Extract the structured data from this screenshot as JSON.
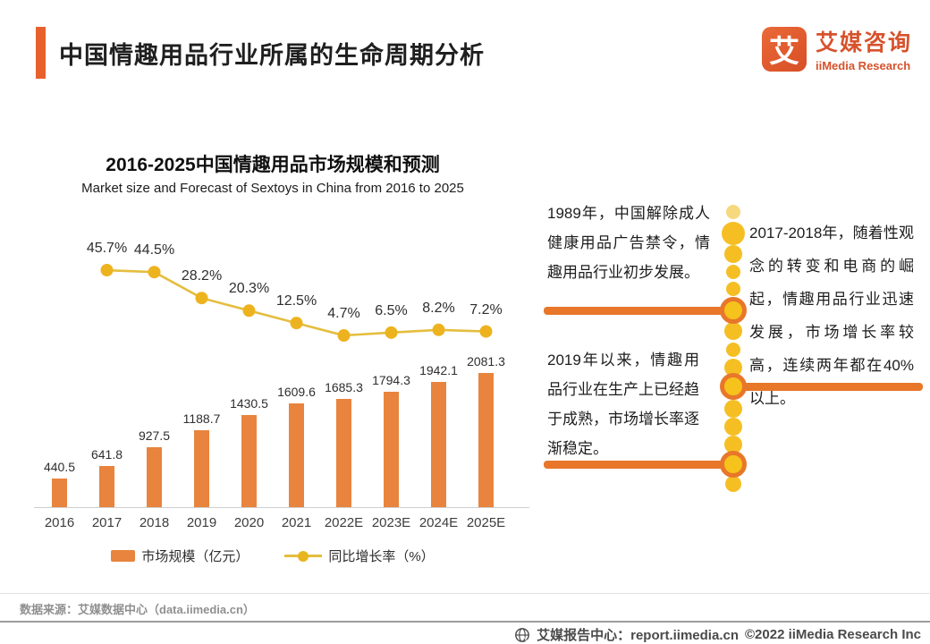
{
  "header": {
    "title": "中国情趣用品行业所属的生命周期分析",
    "logo": {
      "icon_char": "艾",
      "name_cn": "艾媒咨询",
      "name_en": "iiMedia Research"
    }
  },
  "chart": {
    "title_cn": "2016-2025中国情趣用品市场规模和预测",
    "title_en": "Market size and Forecast of Sextoys in China from 2016 to 2025",
    "legend": [
      {
        "label": "市场规模（亿元）",
        "type": "bar",
        "color": "#E8843D"
      },
      {
        "label": "同比增长率（%）",
        "type": "line",
        "color": "#E4BE3E"
      }
    ]
  },
  "chart_data": {
    "type": "combo",
    "title": "2016-2025中国情趣用品市场规模和预测",
    "subtitle": "Market size and Forecast of Sextoys in China from 2016 to 2025",
    "categories": [
      "2016",
      "2017",
      "2018",
      "2019",
      "2020",
      "2021",
      "2022E",
      "2023E",
      "2024E",
      "2025E"
    ],
    "series": [
      {
        "name": "市场规模（亿元）",
        "type": "bar",
        "color": "#E8843D",
        "values": [
          440.5,
          641.8,
          927.5,
          1188.7,
          1430.5,
          1609.6,
          1685.3,
          1794.3,
          1942.1,
          2081.3
        ]
      },
      {
        "name": "同比增长率（%）",
        "type": "line",
        "color": "#E4BE3E",
        "unit": "%",
        "start_category": "2017",
        "values": [
          45.7,
          44.5,
          28.2,
          20.3,
          12.5,
          4.7,
          6.5,
          8.2,
          7.2
        ]
      }
    ],
    "value_labels": true,
    "legend_position": "bottom",
    "y_axis_visible": false,
    "grid": false
  },
  "timeline": {
    "events": [
      {
        "period": "1989年",
        "side": "left",
        "text": "1989年，中国解除成人健康用品广告禁令，情趣用品行业初步发展。"
      },
      {
        "period": "2017-2018年",
        "side": "right",
        "text": "2017-2018年，随着性观念的转变和电商的崛起，情趣用品行业迅速发展，市场增长率较高，连续两年都在40%以上。"
      },
      {
        "period": "2019年以来",
        "side": "left",
        "text": "2019年以来，情趣用品行业在生产上已经趋于成熟，市场增长率逐渐稳定。"
      }
    ]
  },
  "footer": {
    "source": "数据来源：艾媒数据中心（data.iimedia.cn）",
    "report_center": "艾媒报告中心：report.iimedia.cn",
    "copyright": "©2022  iiMedia Research Inc"
  },
  "colors": {
    "accent_orange_red": "#E8612C",
    "bar_orange": "#E8843D",
    "line_yellow": "#E4BE3E",
    "dot_yellow": "#F5BF24",
    "milestone_ring_orange": "#E8772A",
    "brand_orange": "#D7522C"
  }
}
